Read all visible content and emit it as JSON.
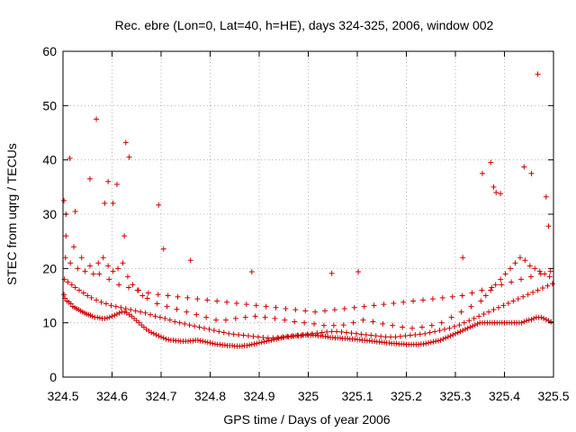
{
  "chart_data": {
    "type": "scatter",
    "title": "Rec. ebre (Lon=0, Lat=40, h=HE), days 324-325, 2006, window 002",
    "xlabel": "GPS time / Days of year 2006",
    "ylabel": "STEC from uqrg / TECUs",
    "xlim": [
      324.5,
      325.5
    ],
    "ylim": [
      0,
      60
    ],
    "xticks": [
      "324.5",
      "324.6",
      "324.7",
      "324.8",
      "324.9",
      "325",
      "325.1",
      "325.2",
      "325.3",
      "325.4",
      "325.5"
    ],
    "yticks": [
      "0",
      "10",
      "20",
      "30",
      "40",
      "50",
      "60"
    ],
    "grid": true,
    "marker": "+",
    "color": "#cc0000",
    "x": [
      324.502,
      324.504,
      324.508,
      324.512,
      324.516,
      324.52,
      324.524,
      324.528,
      324.532,
      324.536,
      324.54,
      324.544,
      324.548,
      324.552,
      324.556,
      324.56,
      324.565,
      324.57,
      324.575,
      324.58,
      324.585,
      324.59,
      324.595,
      324.6,
      324.605,
      324.61,
      324.615,
      324.62,
      324.625,
      324.63,
      324.635,
      324.64,
      324.645,
      324.65,
      324.655,
      324.66,
      324.665,
      324.67,
      324.675,
      324.68,
      324.685,
      324.69,
      324.695,
      324.7,
      324.705,
      324.71,
      324.715,
      324.72,
      324.725,
      324.73,
      324.735,
      324.74,
      324.745,
      324.75,
      324.755,
      324.76,
      324.765,
      324.77,
      324.775,
      324.78,
      324.785,
      324.79,
      324.795,
      324.8,
      324.805,
      324.81,
      324.815,
      324.82,
      324.825,
      324.83,
      324.835,
      324.84,
      324.845,
      324.85,
      324.855,
      324.86,
      324.865,
      324.87,
      324.875,
      324.88,
      324.885,
      324.89,
      324.895,
      324.9,
      324.905,
      324.91,
      324.915,
      324.92,
      324.925,
      324.93,
      324.935,
      324.94,
      324.945,
      324.95,
      324.955,
      324.96,
      324.965,
      324.97,
      324.975,
      324.98,
      324.985,
      324.99,
      324.995,
      325.0,
      325.005,
      325.01,
      325.015,
      325.02,
      325.025,
      325.03,
      325.035,
      325.04,
      325.045,
      325.05,
      325.055,
      325.06,
      325.065,
      325.07,
      325.075,
      325.08,
      325.085,
      325.09,
      325.095,
      325.1,
      325.105,
      325.11,
      325.115,
      325.12,
      325.125,
      325.13,
      325.135,
      325.14,
      325.145,
      325.15,
      325.155,
      325.16,
      325.165,
      325.17,
      325.175,
      325.18,
      325.185,
      325.19,
      325.195,
      325.2,
      325.205,
      325.21,
      325.215,
      325.22,
      325.225,
      325.23,
      325.235,
      325.24,
      325.245,
      325.25,
      325.255,
      325.26,
      325.265,
      325.27,
      325.275,
      325.28,
      325.285,
      325.29,
      325.295,
      325.3,
      325.305,
      325.31,
      325.315,
      325.32,
      325.325,
      325.33,
      325.335,
      325.34,
      325.345,
      325.35,
      325.355,
      325.36,
      325.365,
      325.37,
      325.375,
      325.38,
      325.385,
      325.39,
      325.395,
      325.4,
      325.405,
      325.41,
      325.415,
      325.42,
      325.425,
      325.43,
      325.435,
      325.44,
      325.445,
      325.45,
      325.455,
      325.46,
      325.465,
      325.47,
      325.475,
      325.48,
      325.485,
      325.49,
      325.495,
      324.503,
      324.51,
      324.518,
      324.525,
      324.533,
      324.542,
      324.55,
      324.558,
      324.568,
      324.578,
      324.588,
      324.598,
      324.608,
      324.618,
      324.628,
      324.638,
      324.648,
      324.658,
      324.668,
      324.678,
      324.688,
      324.698,
      324.708,
      324.718,
      324.728,
      324.738,
      324.748,
      324.758,
      324.768,
      324.778,
      324.788,
      324.798,
      324.808,
      324.818,
      324.828,
      324.838,
      324.848,
      324.858,
      324.868,
      324.878,
      324.888,
      324.898,
      324.908,
      324.918,
      324.928,
      324.938,
      324.948,
      324.958,
      324.968,
      324.978,
      324.988,
      324.998,
      325.008,
      325.018,
      325.028,
      325.038,
      325.048,
      325.058,
      325.068,
      325.078,
      325.088,
      325.098,
      325.108,
      325.118,
      325.128,
      325.138,
      325.148,
      325.158,
      325.168,
      325.178,
      325.188,
      325.198,
      325.208,
      325.218,
      325.228,
      325.238,
      325.248,
      325.258,
      325.268,
      325.278,
      325.288,
      325.298,
      325.308,
      325.318,
      325.328,
      325.338,
      325.348,
      325.358,
      325.368,
      325.378,
      325.388,
      325.398,
      325.408,
      325.418,
      325.428,
      325.438,
      325.448,
      325.458,
      325.468,
      325.478,
      325.488,
      325.498,
      324.505,
      324.515,
      324.53,
      324.545,
      324.562,
      324.572,
      324.582,
      324.592,
      324.602,
      324.612,
      324.622,
      324.632,
      324.642,
      324.652,
      324.662,
      324.672,
      324.692,
      324.712,
      324.732,
      324.752,
      324.772,
      324.792,
      324.812,
      324.832,
      324.852,
      324.872,
      324.892,
      324.912,
      324.932,
      324.952,
      324.972,
      324.992,
      325.012,
      325.032,
      325.052,
      325.072,
      325.092,
      325.112,
      325.132,
      325.152,
      325.172,
      325.192,
      325.212,
      325.232,
      325.252,
      325.272,
      325.292,
      325.312,
      325.332,
      325.352,
      325.362,
      325.372,
      325.382,
      325.392,
      325.402,
      325.412,
      325.422,
      325.432,
      325.442,
      325.452,
      325.462,
      325.472,
      325.482,
      325.492,
      324.506,
      324.522,
      324.538,
      324.555,
      324.574,
      324.594,
      324.614,
      324.634,
      324.654,
      324.674,
      324.694,
      324.714,
      324.734,
      324.754,
      324.774,
      324.794,
      324.814,
      324.834,
      324.854,
      324.874,
      324.894,
      324.914,
      324.934,
      324.954,
      324.974,
      324.994,
      325.014,
      325.034,
      325.054,
      325.074,
      325.094,
      325.114,
      325.134,
      325.154,
      325.174,
      325.194,
      325.214,
      325.234,
      325.254,
      325.274,
      325.294,
      325.314,
      325.334,
      325.354,
      325.374,
      325.394,
      325.414,
      325.434,
      325.454,
      325.474,
      325.494,
      324.502,
      324.506,
      324.514,
      324.525,
      324.555,
      324.568,
      324.585,
      324.592,
      324.602,
      324.61,
      324.625,
      324.628,
      324.635,
      324.695,
      324.705,
      324.76,
      324.885,
      325.048,
      325.102,
      325.315,
      325.355,
      325.372,
      325.378,
      325.383,
      325.392,
      325.44,
      325.455,
      325.468,
      325.485,
      325.49
    ],
    "y": [
      15.2,
      14.5,
      14.0,
      13.8,
      13.5,
      13.0,
      12.8,
      12.6,
      12.4,
      12.2,
      12.0,
      11.8,
      11.6,
      11.5,
      11.4,
      11.2,
      11.0,
      11.0,
      10.9,
      10.8,
      10.8,
      10.9,
      11.0,
      11.2,
      11.4,
      11.6,
      11.8,
      12.0,
      12.0,
      11.8,
      11.5,
      11.2,
      10.8,
      10.4,
      10.0,
      9.6,
      9.2,
      8.8,
      8.5,
      8.2,
      8.0,
      7.8,
      7.6,
      7.4,
      7.2,
      7.0,
      6.9,
      6.8,
      6.8,
      6.7,
      6.7,
      6.6,
      6.6,
      6.6,
      6.6,
      6.7,
      6.7,
      6.8,
      6.8,
      6.7,
      6.6,
      6.5,
      6.4,
      6.3,
      6.2,
      6.1,
      6.0,
      6.0,
      5.9,
      5.9,
      5.8,
      5.8,
      5.8,
      5.7,
      5.7,
      5.7,
      5.7,
      5.8,
      5.8,
      5.9,
      6.0,
      6.1,
      6.2,
      6.3,
      6.4,
      6.5,
      6.6,
      6.7,
      6.8,
      6.9,
      7.0,
      7.1,
      7.2,
      7.3,
      7.4,
      7.4,
      7.5,
      7.5,
      7.6,
      7.6,
      7.6,
      7.7,
      7.7,
      7.7,
      7.7,
      7.7,
      7.7,
      7.6,
      7.6,
      7.5,
      7.5,
      7.4,
      7.3,
      7.3,
      7.2,
      7.2,
      7.2,
      7.1,
      7.1,
      7.1,
      7.0,
      7.0,
      7.0,
      6.9,
      6.9,
      6.8,
      6.8,
      6.7,
      6.7,
      6.6,
      6.6,
      6.5,
      6.5,
      6.4,
      6.4,
      6.3,
      6.3,
      6.2,
      6.2,
      6.2,
      6.1,
      6.1,
      6.1,
      6.0,
      6.0,
      6.0,
      6.0,
      6.0,
      6.0,
      6.1,
      6.1,
      6.2,
      6.3,
      6.4,
      6.5,
      6.6,
      6.7,
      6.8,
      7.0,
      7.2,
      7.4,
      7.6,
      7.8,
      8.0,
      8.2,
      8.4,
      8.6,
      8.8,
      9.0,
      9.2,
      9.4,
      9.6,
      9.8,
      10.0,
      10.0,
      10.0,
      10.0,
      10.0,
      10.0,
      10.0,
      10.0,
      10.0,
      10.0,
      10.0,
      10.0,
      10.0,
      10.0,
      10.0,
      10.0,
      10.0,
      10.0,
      10.2,
      10.4,
      10.5,
      10.6,
      10.8,
      11.0,
      11.0,
      11.0,
      10.8,
      10.6,
      10.4,
      10.2,
      18.0,
      17.5,
      17.0,
      16.5,
      16.0,
      15.5,
      15.0,
      14.6,
      14.2,
      13.8,
      13.5,
      13.2,
      13.0,
      12.8,
      12.6,
      12.4,
      12.2,
      12.0,
      11.8,
      11.5,
      11.2,
      11.0,
      10.8,
      10.5,
      10.2,
      10.0,
      9.8,
      9.6,
      9.4,
      9.2,
      9.0,
      8.8,
      8.6,
      8.4,
      8.2,
      8.0,
      7.9,
      7.8,
      7.7,
      7.6,
      7.5,
      7.4,
      7.3,
      7.2,
      7.2,
      7.3,
      7.4,
      7.5,
      7.6,
      7.7,
      7.8,
      7.9,
      8.0,
      8.1,
      8.2,
      8.3,
      8.4,
      8.4,
      8.3,
      8.2,
      8.1,
      8.0,
      7.9,
      7.8,
      7.7,
      7.6,
      7.5,
      7.4,
      7.4,
      7.4,
      7.5,
      7.6,
      7.7,
      7.8,
      7.9,
      8.0,
      8.2,
      8.4,
      8.6,
      8.8,
      9.0,
      9.3,
      9.6,
      10.0,
      10.4,
      10.8,
      11.2,
      11.6,
      12.0,
      12.4,
      12.8,
      13.2,
      13.6,
      14.0,
      14.4,
      14.8,
      15.2,
      15.6,
      16.0,
      16.4,
      16.8,
      17.2,
      22.0,
      21.0,
      20.0,
      19.5,
      19.0,
      21.0,
      22.0,
      20.5,
      19.5,
      20.0,
      21.0,
      18.5,
      17.0,
      16.0,
      15.0,
      14.5,
      13.5,
      13.0,
      12.5,
      12.0,
      11.5,
      11.0,
      10.5,
      10.5,
      10.8,
      11.0,
      11.2,
      11.0,
      10.8,
      10.5,
      10.2,
      10.0,
      9.8,
      9.5,
      9.5,
      9.6,
      10.0,
      10.5,
      10.2,
      9.8,
      9.5,
      9.2,
      9.0,
      9.2,
      9.5,
      10.0,
      11.0,
      12.0,
      13.0,
      14.0,
      15.0,
      16.0,
      17.0,
      18.0,
      19.0,
      20.0,
      21.0,
      22.0,
      21.5,
      20.5,
      20.0,
      19.5,
      19.0,
      18.5,
      26.0,
      24.0,
      22.0,
      20.5,
      19.0,
      18.0,
      17.0,
      16.5,
      16.0,
      15.5,
      15.2,
      15.0,
      14.8,
      14.6,
      14.4,
      14.2,
      14.0,
      13.8,
      13.6,
      13.4,
      13.2,
      13.0,
      12.8,
      12.6,
      12.4,
      12.2,
      12.0,
      12.2,
      12.4,
      12.6,
      12.8,
      13.0,
      13.2,
      13.4,
      13.6,
      13.8,
      14.0,
      14.2,
      14.4,
      14.6,
      14.8,
      15.0,
      15.5,
      16.0,
      16.5,
      17.0,
      17.5,
      18.0,
      18.5,
      19.0,
      19.5,
      32.5,
      30.0,
      40.3,
      30.5,
      36.5,
      47.5,
      32.0,
      36.0,
      32.0,
      35.5,
      26.0,
      43.2,
      40.5,
      31.7,
      23.6,
      21.5,
      19.4,
      19.1,
      19.4,
      22.0,
      37.5,
      39.5,
      35.0,
      34.0,
      33.8,
      38.7,
      37.5,
      55.8,
      33.2,
      27.8
    ]
  }
}
